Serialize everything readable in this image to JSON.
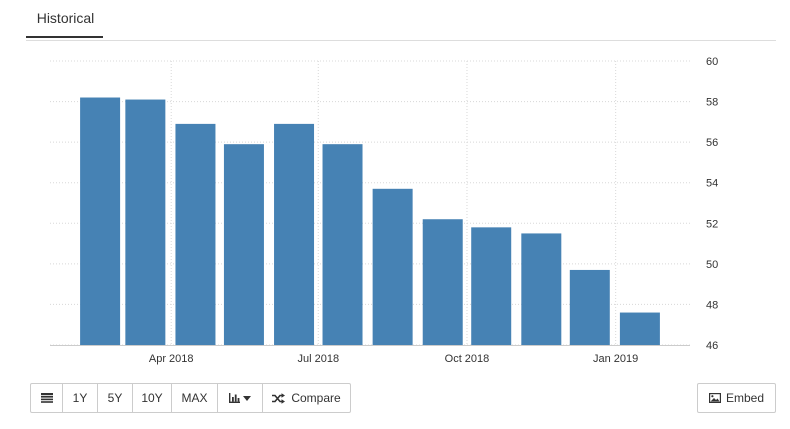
{
  "tabs": {
    "active_label": "Historical"
  },
  "toolbar": {
    "range_1y": "1Y",
    "range_5y": "5Y",
    "range_10y": "10Y",
    "range_max": "MAX",
    "compare_label": "Compare",
    "embed_label": "Embed"
  },
  "icons": {
    "table": "table-icon",
    "chart_type": "bar-chart-icon",
    "caret": "caret-down-icon",
    "compare": "shuffle-icon",
    "embed": "image-icon"
  },
  "chart_data": {
    "type": "bar",
    "title": "",
    "xlabel": "",
    "ylabel": "",
    "x_ticks": [
      "Apr 2018",
      "Jul 2018",
      "Oct 2018",
      "Jan 2019"
    ],
    "categories": [
      "2018-02",
      "2018-03",
      "2018-04",
      "2018-05",
      "2018-06",
      "2018-07",
      "2018-08",
      "2018-09",
      "2018-10",
      "2018-11",
      "2018-12",
      "2019-01"
    ],
    "values": [
      58.2,
      58.1,
      56.9,
      55.9,
      56.9,
      55.9,
      53.7,
      52.2,
      51.8,
      51.5,
      49.7,
      47.6
    ],
    "ylim": [
      46,
      60
    ],
    "y_ticks": [
      46,
      48,
      50,
      52,
      54,
      56,
      58,
      60
    ],
    "y_axis_side": "right",
    "grid": true,
    "bar_color": "#4682b4",
    "grid_color": "#d8d8d8"
  }
}
